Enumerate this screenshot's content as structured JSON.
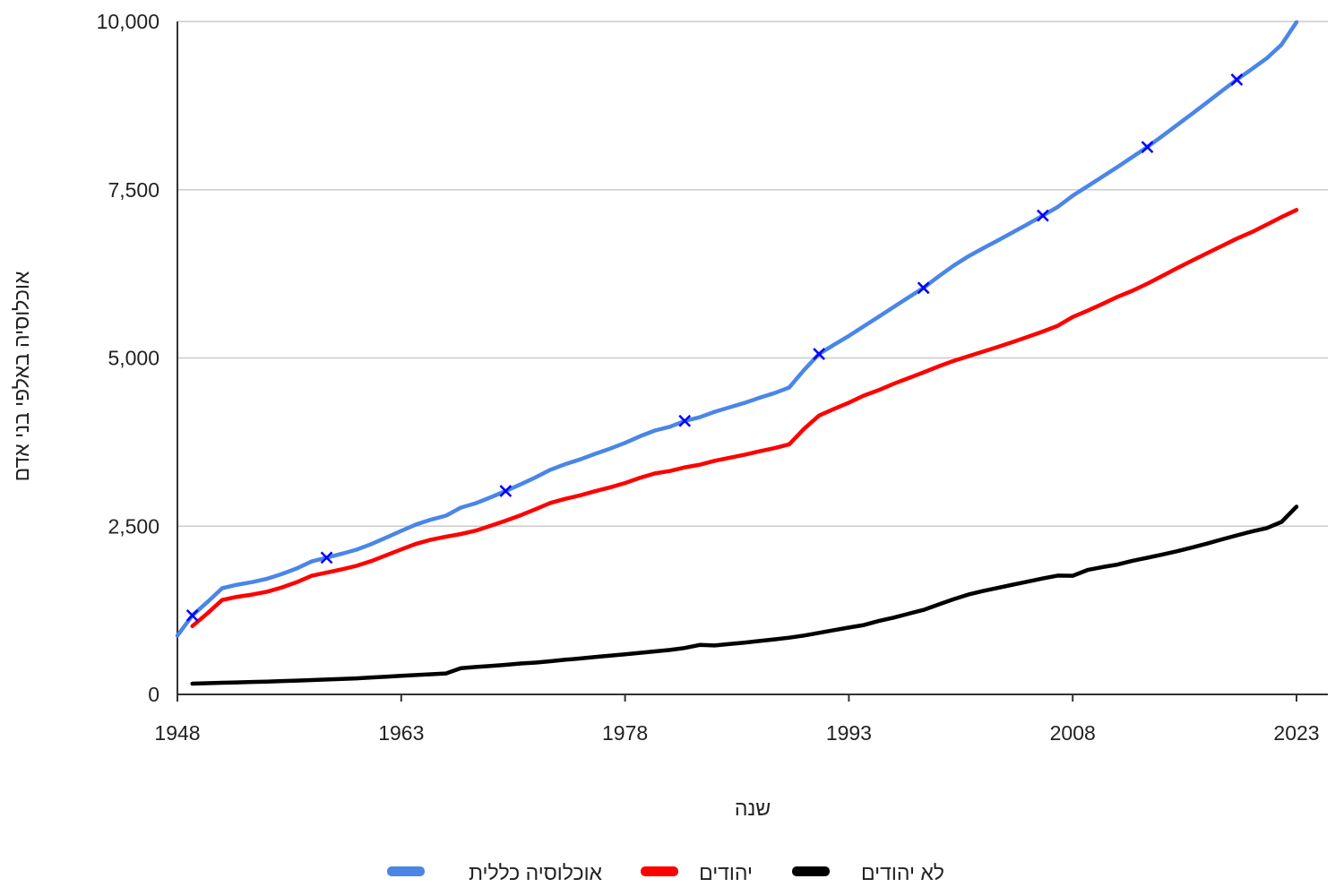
{
  "chart_data": {
    "type": "line",
    "title": "",
    "xlabel": "שנה",
    "ylabel": "אוכלוסיה באלפי בני אדם",
    "xlim": [
      1948,
      2023
    ],
    "ylim": [
      0,
      10000
    ],
    "x_ticks": [
      "1948",
      "1963",
      "1978",
      "1993",
      "2008",
      "2023"
    ],
    "y_ticks": [
      "0",
      "2,500",
      "5,000",
      "7,500",
      "10,000"
    ],
    "grid": "horizontal",
    "legend_position": "bottom",
    "series": [
      {
        "name": "אוכלוסיה כללית",
        "color": "#4a86e8",
        "marker_color": "#0000ff",
        "marker_x": [
          1949,
          1958,
          1970,
          1982,
          1991,
          1998,
          2006,
          2013,
          2019
        ],
        "x": [
          1948,
          1949,
          1950,
          1951,
          1952,
          1953,
          1954,
          1955,
          1956,
          1957,
          1958,
          1959,
          1960,
          1961,
          1962,
          1963,
          1964,
          1965,
          1966,
          1967,
          1968,
          1969,
          1970,
          1971,
          1972,
          1973,
          1974,
          1975,
          1976,
          1977,
          1978,
          1979,
          1980,
          1981,
          1982,
          1983,
          1984,
          1985,
          1986,
          1987,
          1988,
          1989,
          1990,
          1991,
          1992,
          1993,
          1994,
          1995,
          1996,
          1997,
          1998,
          1999,
          2000,
          2001,
          2002,
          2003,
          2004,
          2005,
          2006,
          2007,
          2008,
          2009,
          2010,
          2011,
          2012,
          2013,
          2014,
          2015,
          2016,
          2017,
          2018,
          2019,
          2020,
          2021,
          2022,
          2023
        ],
        "values": [
          873,
          1174,
          1370,
          1578,
          1630,
          1669,
          1718,
          1789,
          1872,
          1976,
          2032,
          2089,
          2150,
          2234,
          2332,
          2430,
          2526,
          2598,
          2657,
          2776,
          2841,
          2930,
          3022,
          3121,
          3225,
          3338,
          3422,
          3493,
          3575,
          3653,
          3738,
          3836,
          3922,
          3978,
          4064,
          4119,
          4200,
          4266,
          4331,
          4407,
          4477,
          4560,
          4822,
          5059,
          5196,
          5328,
          5472,
          5612,
          5757,
          5900,
          6041,
          6209,
          6369,
          6508,
          6631,
          6748,
          6869,
          6991,
          7116,
          7244,
          7412,
          7552,
          7695,
          7837,
          7985,
          8134,
          8297,
          8463,
          8628,
          8797,
          8968,
          9136,
          9291,
          9453,
          9656,
          9990
        ]
      },
      {
        "name": "יהודים",
        "color": "#ff0000",
        "x": [
          1949,
          1950,
          1951,
          1952,
          1953,
          1954,
          1955,
          1956,
          1957,
          1958,
          1959,
          1960,
          1961,
          1962,
          1963,
          1964,
          1965,
          1966,
          1967,
          1968,
          1969,
          1970,
          1971,
          1972,
          1973,
          1974,
          1975,
          1976,
          1977,
          1978,
          1979,
          1980,
          1981,
          1982,
          1983,
          1984,
          1985,
          1986,
          1987,
          1988,
          1989,
          1990,
          1991,
          1992,
          1993,
          1994,
          1995,
          1996,
          1997,
          1998,
          1999,
          2000,
          2001,
          2002,
          2003,
          2004,
          2005,
          2006,
          2007,
          2008,
          2009,
          2010,
          2011,
          2012,
          2013,
          2014,
          2015,
          2016,
          2017,
          2018,
          2019,
          2020,
          2021,
          2022,
          2023
        ],
        "values": [
          1014,
          1203,
          1404,
          1450,
          1484,
          1526,
          1590,
          1667,
          1763,
          1810,
          1858,
          1911,
          1981,
          2068,
          2155,
          2239,
          2300,
          2344,
          2384,
          2434,
          2507,
          2582,
          2662,
          2752,
          2845,
          2907,
          2959,
          3020,
          3077,
          3141,
          3218,
          3283,
          3320,
          3374,
          3413,
          3471,
          3517,
          3561,
          3613,
          3659,
          3717,
          3947,
          4144,
          4242,
          4335,
          4441,
          4522,
          4616,
          4701,
          4785,
          4873,
          4955,
          5025,
          5094,
          5165,
          5238,
          5314,
          5393,
          5478,
          5609,
          5703,
          5803,
          5908,
          5999,
          6104,
          6219,
          6335,
          6446,
          6556,
          6664,
          6773,
          6870,
          6982,
          7093,
          7200
        ]
      },
      {
        "name": "לא יהודים",
        "color": "#000000",
        "x": [
          1949,
          1950,
          1951,
          1952,
          1953,
          1954,
          1955,
          1956,
          1957,
          1958,
          1959,
          1960,
          1961,
          1962,
          1963,
          1964,
          1965,
          1966,
          1967,
          1968,
          1969,
          1970,
          1971,
          1972,
          1973,
          1974,
          1975,
          1976,
          1977,
          1978,
          1979,
          1980,
          1981,
          1982,
          1983,
          1984,
          1985,
          1986,
          1987,
          1988,
          1989,
          1990,
          1991,
          1992,
          1993,
          1994,
          1995,
          1996,
          1997,
          1998,
          1999,
          2000,
          2001,
          2002,
          2003,
          2004,
          2005,
          2006,
          2007,
          2008,
          2009,
          2010,
          2011,
          2012,
          2013,
          2014,
          2015,
          2016,
          2017,
          2018,
          2019,
          2020,
          2021,
          2022,
          2023
        ],
        "values": [
          160,
          167,
          173,
          179,
          185,
          191,
          198,
          205,
          213,
          221,
          229,
          239,
          252,
          264,
          276,
          288,
          299,
          312,
          390,
          407,
          423,
          440,
          459,
          473,
          493,
          515,
          534,
          556,
          576,
          597,
          618,
          639,
          660,
          690,
          735,
          727,
          749,
          770,
          794,
          818,
          843,
          875,
          915,
          955,
          994,
          1031,
          1090,
          1141,
          1199,
          1256,
          1336,
          1413,
          1484,
          1537,
          1583,
          1631,
          1677,
          1723,
          1766,
          1763,
          1849,
          1892,
          1929,
          1986,
          2031,
          2078,
          2128,
          2182,
          2241,
          2304,
          2363,
          2421,
          2471,
          2563,
          2790
        ]
      }
    ]
  }
}
